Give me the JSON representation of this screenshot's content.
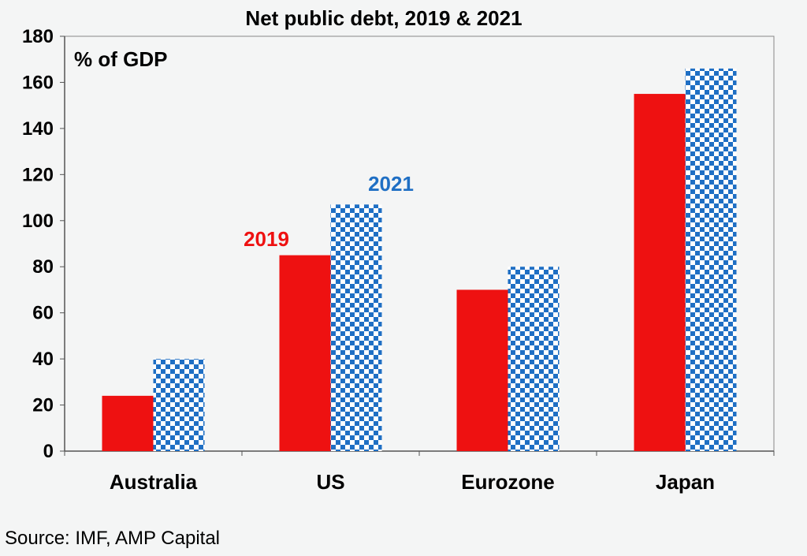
{
  "chart_data": {
    "type": "bar",
    "title": "Net public debt, 2019 & 2021",
    "ylabel": "% of GDP",
    "xlabel": "",
    "categories": [
      "Australia",
      "US",
      "Eurozone",
      "Japan"
    ],
    "series": [
      {
        "name": "2019",
        "values": [
          24,
          85,
          70,
          155
        ],
        "color": "#ee1111",
        "pattern": "solid"
      },
      {
        "name": "2021",
        "values": [
          40,
          107,
          80,
          166
        ],
        "color": "#1f6fc4",
        "pattern": "checkerboard"
      }
    ],
    "ylim": [
      0,
      180
    ],
    "yticks": [
      "0",
      "20",
      "40",
      "60",
      "80",
      "100",
      "120",
      "140",
      "160",
      "180"
    ],
    "grid": false,
    "legend": "inline labels above US bars"
  },
  "source": "Source: IMF, AMP Capital"
}
